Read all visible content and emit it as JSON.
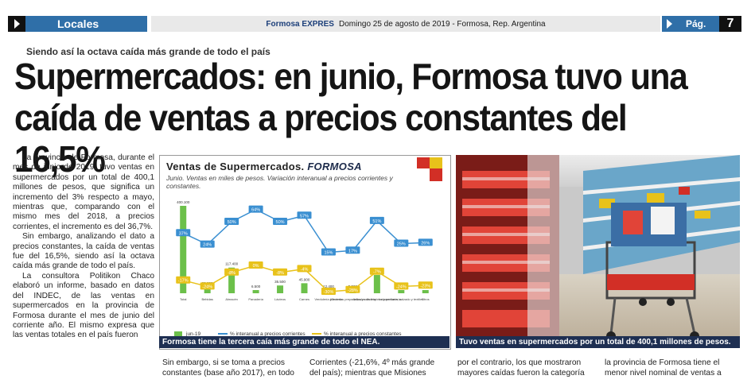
{
  "topbar": {
    "section_label": "Locales",
    "brand": "Formosa EXPRES",
    "dateline": "Domingo 25 de agosto de 2019 - Formosa, Rep. Argentina",
    "page_label": "Pág.",
    "page_number": "7"
  },
  "article": {
    "kicker": "Siendo así la octava caída más grande de todo el país",
    "headline_line1": "Supermercados: en junio, Formosa tuvo una",
    "headline_line2": "caída de ventas a precios constantes del 16,5%",
    "col1_p1": "La provincia de Formosa, durante el mes de junio de 2019, tuvo ventas en supermercados por un total de 400,1 millones de pesos, que significa un incremento del 3% respecto a mayo, mientras que, comparando con el mismo mes del 2018, a precios corrientes, el incremento es del 36,7%.",
    "col1_p2": "Sin embargo, analizando el dato a precios constantes, la caída de ventas fue del 16,5%, siendo así la octava caída más grande de todo el país.",
    "col1_p3": "La consultora Politikon Chaco elaboró un informe, basado en datos del INDEC, de las ventas en supermercados en la provincia de Formosa durante el mes de junio del corriente año. El mismo expresa que las ventas totales en el país fueron",
    "bottom_col2": "Sin embargo, si se toma a precios constantes (base año 2017), en todo",
    "bottom_col3": "Corrientes (-21,6%, 4º más grande del país); mientras que Misiones",
    "bottom_col4": "por el contrario, los que mostraron mayores caídas fueron la categoría",
    "bottom_col5": "la provincia de Formosa tiene el menor nivel nominal de ventas a",
    "chart_caption": "Formosa tiene la tercera caía más grande de todo el NEA.",
    "photo_caption": "Tuvo ventas en supermercados por un total de 400,1 millones de pesos."
  },
  "chart_data": {
    "type": "bar",
    "title": "Ventas de Supermercados.",
    "title_emphasis": "FORMOSA",
    "subtitle": "Junio. Ventas en miles de pesos. Variación interanual a precios corrientes y constantes.",
    "categories": [
      "Total",
      "Bebidas",
      "Almacén",
      "Panadería",
      "Lácteos",
      "Carnes",
      "Verdulería y frutería",
      "Alimentos preparados y rotisería",
      "Artículos de limpieza y perfumería",
      "Indumentaria, calzado y textiles",
      "Otros"
    ],
    "series": [
      {
        "name": "jun-19",
        "color": "#6cc04a",
        "values": [
          400100,
          29000,
          117400,
          6500,
          35500,
          45900,
          12400,
          5500,
          83500,
          8700,
          10200
        ]
      },
      {
        "name": "% interanual a precios corrientes",
        "color": "#3a8fd1",
        "values": [
          37,
          24,
          50,
          64,
          50,
          57,
          15,
          17,
          51,
          25,
          26
        ]
      },
      {
        "name": "% interanual a precios constantes",
        "color": "#e8c21a",
        "values": [
          -17,
          -24,
          -8,
          0,
          -8,
          -4,
          -30,
          -28,
          -7,
          -24,
          -23
        ]
      }
    ],
    "legend_position": "bottom"
  },
  "colors": {
    "bar_blue": "#2f6fa8",
    "caption_navy": "#1e2f52",
    "accent_red": "#d22f26",
    "accent_yellow": "#e8c21a"
  }
}
